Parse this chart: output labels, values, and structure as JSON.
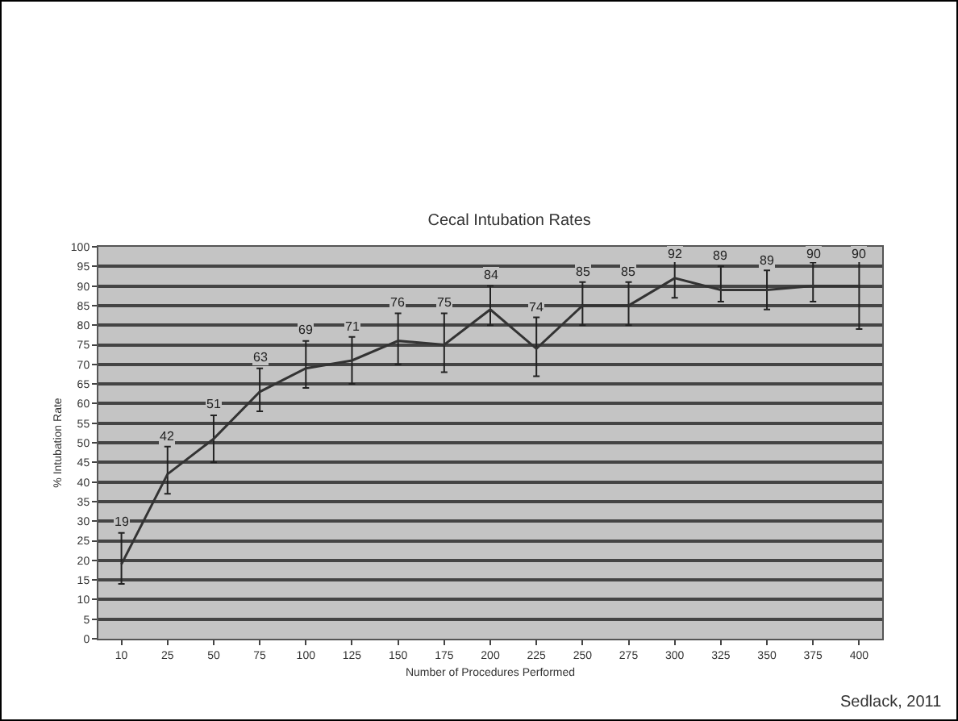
{
  "chart_data": {
    "type": "line",
    "title": "Cecal Intubation Rates",
    "xlabel": "Number of Procedures Performed",
    "ylabel": "% Intubation Rate",
    "categories": [
      "10",
      "25",
      "50",
      "75",
      "100",
      "125",
      "150",
      "175",
      "200",
      "225",
      "250",
      "275",
      "300",
      "325",
      "350",
      "375",
      "400"
    ],
    "series": [
      {
        "color": "#333333",
        "values": [
          19,
          42,
          51,
          63,
          69,
          71,
          76,
          75,
          84,
          74,
          85,
          85,
          92,
          89,
          89,
          90,
          90
        ],
        "errors": [
          [
            14,
            27
          ],
          [
            37,
            49
          ],
          [
            45,
            57
          ],
          [
            58,
            69
          ],
          [
            64,
            76
          ],
          [
            65,
            77
          ],
          [
            70,
            83
          ],
          [
            68,
            83
          ],
          [
            80,
            90
          ],
          [
            67,
            82
          ],
          [
            80,
            91
          ],
          [
            80,
            91
          ],
          [
            87,
            98
          ],
          [
            86,
            95
          ],
          [
            84,
            94
          ],
          [
            86,
            96
          ],
          [
            79,
            100
          ]
        ]
      }
    ],
    "ylim": [
      0,
      100
    ],
    "yticks": [
      0,
      5,
      10,
      15,
      20,
      25,
      30,
      35,
      40,
      45,
      50,
      55,
      60,
      65,
      70,
      75,
      80,
      85,
      90,
      95,
      100
    ],
    "grid": "y",
    "data_labels": true,
    "marker": "none",
    "line_style": "solid",
    "annotations": [
      "Sedlack, 2011"
    ]
  }
}
